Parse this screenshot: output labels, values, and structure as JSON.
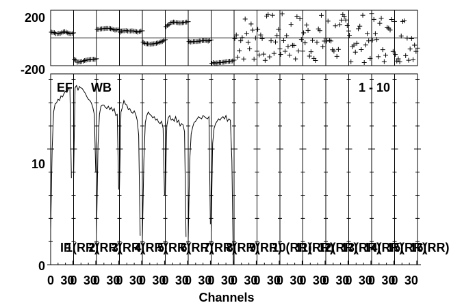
{
  "chart_data": {
    "type": "line",
    "panel_labels": [
      "EF",
      "WB"
    ],
    "baseline_label": "1 - 10",
    "xlabel": "Channels",
    "if_label": "IF",
    "if_segments": [
      "1(RR)",
      "2(RR)",
      "3(RR)",
      "4(RR)",
      "5(RR)",
      "6(RR)",
      "7(RR)",
      "8(RR)",
      "9(RR)",
      "10(RR)",
      "11(RR)",
      "12(RR)",
      "13(RR)",
      "14(RR)",
      "15(RR)",
      "16(RR)"
    ],
    "x_tick_labels": [
      "0",
      "30"
    ],
    "x_per_if": [
      0,
      31
    ],
    "phase_axis": {
      "ylim": [
        -200,
        200
      ],
      "tick_labels": [
        "200",
        "-200"
      ]
    },
    "amplitude_axis": {
      "ylim": [
        0,
        16.5
      ],
      "tick_labels": [
        "10",
        "0"
      ]
    },
    "amplitude_series": [
      {
        "if": 1,
        "channel_step": 2,
        "values": [
          3.0,
          10.0,
          13.2,
          13.9,
          14.0,
          14.3,
          14.2,
          14.6,
          14.5,
          14.8,
          15.0,
          14.9,
          15.2,
          15.3,
          7.5
        ]
      },
      {
        "if": 2,
        "channel_step": 2,
        "values": [
          7.5,
          15.3,
          15.5,
          15.1,
          15.4,
          15.3,
          15.2,
          15.0,
          14.8,
          14.5,
          14.3,
          14.2,
          14.0,
          13.6,
          13.0,
          8.0
        ]
      },
      {
        "if": 3,
        "channel_step": 2,
        "values": [
          2.6,
          10.3,
          13.0,
          13.7,
          13.8,
          13.8,
          13.6,
          13.5,
          13.7,
          13.4,
          13.6,
          13.3,
          13.5,
          12.9,
          13.0,
          6.5
        ]
      },
      {
        "if": 4,
        "channel_step": 2,
        "values": [
          6.5,
          13.2,
          13.6,
          14.2,
          13.9,
          13.8,
          13.4,
          13.5,
          13.2,
          13.1,
          13.3,
          13.0,
          12.5,
          11.2,
          2.5
        ]
      },
      {
        "if": 5,
        "channel_step": 2,
        "values": [
          2.2,
          9.0,
          12.3,
          12.9,
          13.2,
          13.0,
          12.9,
          12.7,
          12.8,
          12.5,
          12.6,
          12.3,
          12.2,
          12.4,
          11.8,
          6.0
        ]
      },
      {
        "if": 6,
        "channel_step": 2,
        "values": [
          6.0,
          12.0,
          12.7,
          12.9,
          12.5,
          12.6,
          12.4,
          12.8,
          12.3,
          12.5,
          12.0,
          12.2,
          12.1,
          11.5,
          2.4
        ]
      },
      {
        "if": 7,
        "channel_step": 2,
        "values": [
          2.2,
          9.0,
          11.3,
          11.9,
          12.3,
          12.4,
          12.6,
          12.8,
          12.7,
          12.6,
          12.9,
          12.8,
          12.7,
          12.6,
          12.8,
          3.5
        ]
      },
      {
        "if": 8,
        "channel_step": 2,
        "values": [
          2.8,
          10.5,
          11.8,
          12.2,
          12.4,
          12.6,
          12.5,
          12.7,
          12.8,
          12.6,
          12.9,
          12.4,
          12.6,
          12.5,
          9.0,
          0.0
        ]
      }
    ],
    "phase_series": [
      {
        "if": 1,
        "values": [
          42,
          40,
          38,
          30,
          30,
          33,
          33,
          38,
          43,
          45,
          42,
          37,
          32,
          30,
          32,
          37
        ]
      },
      {
        "if": 2,
        "values": [
          -155,
          -160,
          -175,
          -173,
          -172,
          -170,
          -167,
          -163,
          -160,
          -158,
          -157,
          -155,
          -154,
          -153,
          -155,
          -150
        ]
      },
      {
        "if": 3,
        "values": [
          62,
          62,
          65,
          66,
          67,
          68,
          70,
          70,
          70,
          67,
          65,
          60,
          57,
          58,
          60,
          64
        ]
      },
      {
        "if": 4,
        "values": [
          42,
          50,
          52,
          52,
          54,
          50,
          50,
          50,
          52,
          50,
          49,
          45,
          42,
          45,
          50,
          52
        ]
      },
      {
        "if": 5,
        "values": [
          -30,
          -38,
          -42,
          -42,
          -44,
          -45,
          -43,
          -42,
          -40,
          -38,
          -36,
          -32,
          -28,
          -25,
          -20,
          -12
        ]
      },
      {
        "if": 6,
        "values": [
          82,
          90,
          98,
          108,
          112,
          115,
          114,
          112,
          110,
          108,
          108,
          110,
          112,
          114,
          115,
          118
        ]
      },
      {
        "if": 7,
        "values": [
          -25,
          -30,
          -28,
          -26,
          -25,
          -26,
          -25,
          -22,
          -22,
          -20,
          -18,
          -18,
          -20,
          -22,
          -20,
          -15
        ]
      },
      {
        "if": 8,
        "values": [
          -183,
          -178,
          -182,
          -180,
          -180,
          -177,
          -178,
          -176,
          -175,
          -172,
          -170,
          -170,
          -168,
          -168,
          -166,
          -160
        ]
      }
    ],
    "scatter_ifs": [
      9,
      10,
      11,
      12,
      13,
      14,
      15,
      16
    ],
    "grid": false
  }
}
